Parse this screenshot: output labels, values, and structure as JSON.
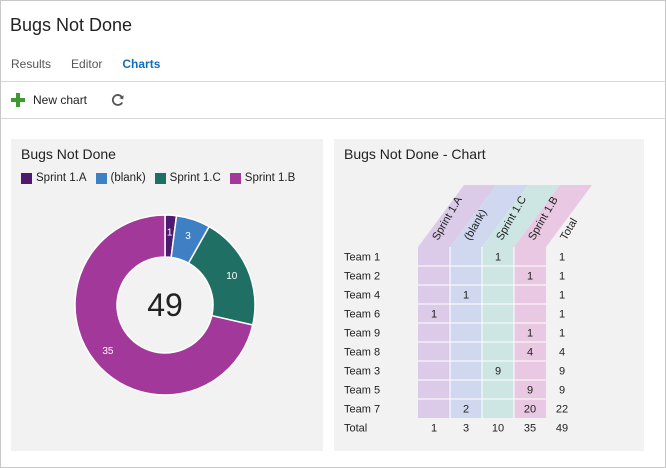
{
  "page": {
    "title": "Bugs Not Done"
  },
  "tabs": [
    {
      "label": "Results",
      "active": false
    },
    {
      "label": "Editor",
      "active": false
    },
    {
      "label": "Charts",
      "active": true
    }
  ],
  "toolbar": {
    "new_chart_label": "New chart",
    "new_chart_icon": "plus-icon",
    "refresh_icon": "refresh-icon"
  },
  "colors": {
    "sprint_1a": "#4e1a6e",
    "blank": "#3f7fc4",
    "sprint_1c": "#1f6f64",
    "sprint_1b": "#a2389a"
  },
  "donut_panel": {
    "title": "Bugs Not Done",
    "legend": [
      {
        "label": "Sprint 1.A",
        "color": "#4e1a6e"
      },
      {
        "label": "(blank)",
        "color": "#3f7fc4"
      },
      {
        "label": "Sprint 1.C",
        "color": "#1f6f64"
      },
      {
        "label": "Sprint 1.B",
        "color": "#a2389a"
      }
    ],
    "total": "49"
  },
  "pivot_panel": {
    "title": "Bugs Not Done - Chart"
  },
  "chart_data": [
    {
      "type": "pie",
      "title": "Bugs Not Done",
      "categories": [
        "Sprint 1.A",
        "(blank)",
        "Sprint 1.C",
        "Sprint 1.B"
      ],
      "values": [
        1,
        3,
        10,
        35
      ],
      "total": 49,
      "legend": "top"
    },
    {
      "type": "table",
      "title": "Bugs Not Done - Chart",
      "columns": [
        "Sprint 1.A",
        "(blank)",
        "Sprint 1.C",
        "Sprint 1.B",
        "Total"
      ],
      "rows": [
        {
          "label": "Team 1",
          "values": [
            "",
            "",
            "1",
            "",
            "1"
          ]
        },
        {
          "label": "Team 2",
          "values": [
            "",
            "",
            "",
            "1",
            "1"
          ]
        },
        {
          "label": "Team 4",
          "values": [
            "",
            "1",
            "",
            "",
            "1"
          ]
        },
        {
          "label": "Team 6",
          "values": [
            "1",
            "",
            "",
            "",
            "1"
          ]
        },
        {
          "label": "Team 9",
          "values": [
            "",
            "",
            "",
            "1",
            "1"
          ]
        },
        {
          "label": "Team 8",
          "values": [
            "",
            "",
            "",
            "4",
            "4"
          ]
        },
        {
          "label": "Team 3",
          "values": [
            "",
            "",
            "9",
            "",
            "9"
          ]
        },
        {
          "label": "Team 5",
          "values": [
            "",
            "",
            "",
            "9",
            "9"
          ]
        },
        {
          "label": "Team 7",
          "values": [
            "",
            "2",
            "",
            "20",
            "22"
          ]
        }
      ],
      "totals": {
        "label": "Total",
        "values": [
          "1",
          "3",
          "10",
          "35",
          "49"
        ]
      },
      "column_tints": [
        "#dccbe8",
        "#cfd8ef",
        "#cde6e3",
        "#e8c8e2"
      ]
    }
  ]
}
